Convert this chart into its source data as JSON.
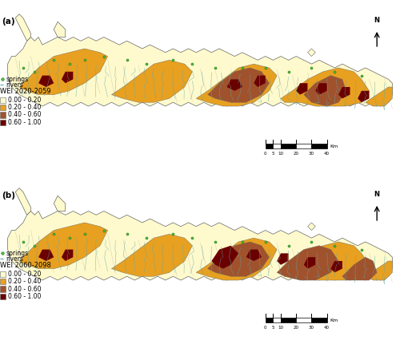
{
  "figure_width": 5.0,
  "figure_height": 4.36,
  "dpi": 100,
  "background_color": "#ffffff",
  "panel_a_label": "(a)",
  "panel_b_label": "(b)",
  "wei_colors": {
    "low": "#FFFACD",
    "med_low": "#E8A020",
    "med_high": "#A0522D",
    "high": "#6B0000"
  },
  "river_color": "#5BAAAA",
  "spring_color": "#55BB44",
  "scale_bar_ticks": [
    0,
    5,
    10,
    20,
    30,
    40
  ],
  "scale_bar_unit": "Km",
  "panel_a_title": "WEI 2020-2059",
  "panel_b_title": "WEI 2060-2098",
  "legend_fontsize": 5.5,
  "label_fontsize": 7.5,
  "header_fontsize": 6.0,
  "map_border_color": "#666666",
  "basin_line_color": "#888888"
}
